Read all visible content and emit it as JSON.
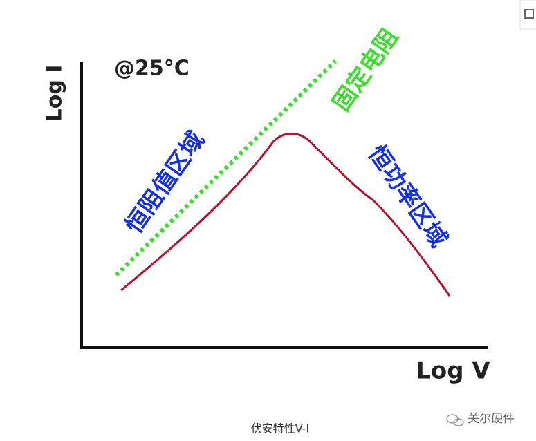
{
  "axis": {
    "y_label": "Log I",
    "x_label": "Log V"
  },
  "condition": "@25°C",
  "regions": {
    "fixed_resistance": "固定电阻",
    "constant_resistance": "恒阻值区域",
    "constant_power": "恒功率区域"
  },
  "caption": "伏安特性V-I",
  "watermark": "关尔硬件"
}
